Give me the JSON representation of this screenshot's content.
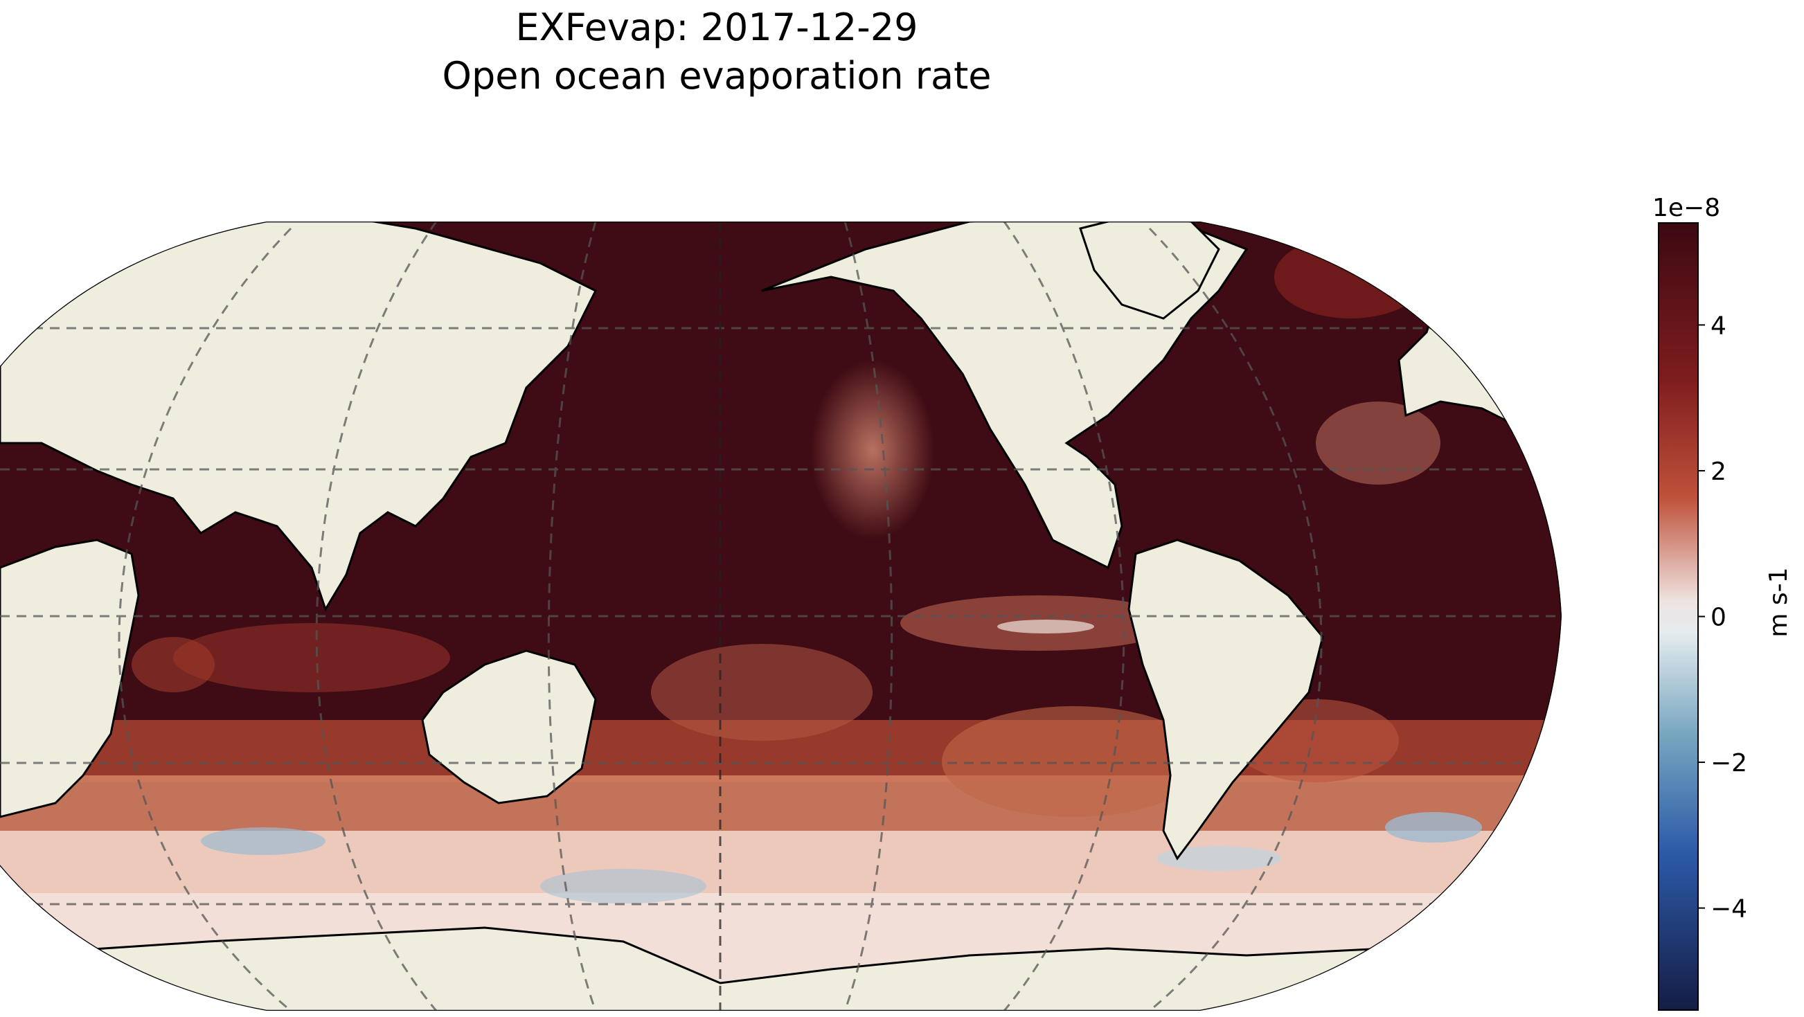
{
  "figure": {
    "title_line1": "EXFevap: 2017-12-29",
    "title_line2": "Open ocean evaporation rate"
  },
  "map": {
    "projection": "robinson",
    "central_longitude": "180",
    "gridlines": "dashed",
    "land_color": "#efedde",
    "ocean_colormap": "balance (blue–white–red)"
  },
  "colorbar": {
    "label": "m s-1",
    "offset_text": "1e−8",
    "ticks": [
      "4",
      "2",
      "0",
      "−2",
      "−4"
    ],
    "tick_values": [
      4,
      2,
      0,
      -2,
      -4
    ],
    "vmin": -5.4,
    "vmax": 5.4,
    "colors": {
      "low": "#151d44",
      "mid_low": "#3c73a8",
      "mid": "#f1ecec",
      "mid_high": "#cf5b3e",
      "high": "#3c0912"
    }
  }
}
